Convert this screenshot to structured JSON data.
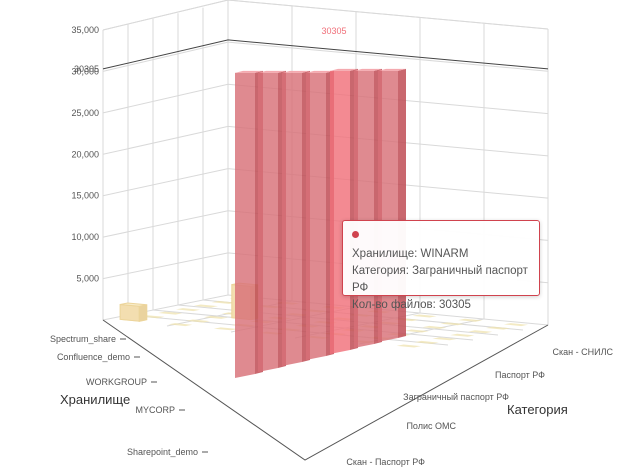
{
  "chart_data": {
    "type": "bar3d",
    "zlim": [
      0,
      35000
    ],
    "z_ticks": [
      5000,
      10000,
      15000,
      20000,
      25000,
      30000,
      35000
    ],
    "z_tick_labels": [
      "5,000",
      "10,000",
      "15,000",
      "20,000",
      "25,000",
      "30,000",
      "35,000"
    ],
    "highlight_value": 30305,
    "highlight_label": "30305",
    "axis_titles": {
      "storage": "Хранилище",
      "category": "Категория"
    },
    "storages": [
      "Spectrum_share",
      "Confluence_demo",
      "WORKGROUP",
      "MYCORP",
      "Sharepoint_demo"
    ],
    "categories": [
      "Скан - Паспорт РФ",
      "Полис ОМС",
      "Заграничный паспорт РФ",
      "Паспорт РФ",
      "Скан - СНИЛС"
    ],
    "series": [
      {
        "name": "Кол-во файлов",
        "values": [
          {
            "storage": "WINARM",
            "category": "Заграничный паспорт РФ",
            "value": 30305
          }
        ]
      }
    ]
  },
  "colors": {
    "highlight": "#f0707a",
    "bar_front": "#d87078",
    "bar_side": "#c04c55",
    "bar_top": "#f3a0a6",
    "floor_tile": "#efe3b0",
    "grid": "#d9d9d9",
    "tooltip_border": "#d0434e"
  },
  "tooltip": {
    "storage_line": "Хранилище: WINARM",
    "category_line": "Категория: Заграничный паспорт РФ",
    "count_line": "Кол-во файлов: 30305"
  }
}
